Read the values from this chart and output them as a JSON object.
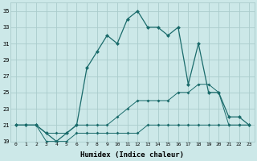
{
  "xlabel": "Humidex (Indice chaleur)",
  "x": [
    0,
    1,
    2,
    3,
    4,
    5,
    6,
    7,
    8,
    9,
    10,
    11,
    12,
    13,
    14,
    15,
    16,
    17,
    18,
    19,
    20,
    21,
    22,
    23
  ],
  "line1": [
    21,
    21,
    21,
    20,
    19,
    20,
    21,
    28,
    30,
    32,
    31,
    34,
    35,
    33,
    33,
    32,
    33,
    26,
    31,
    25,
    25,
    22,
    22,
    21
  ],
  "line2": [
    21,
    21,
    21,
    20,
    20,
    20,
    21,
    21,
    21,
    21,
    22,
    23,
    24,
    24,
    24,
    24,
    25,
    25,
    26,
    26,
    25,
    21,
    21,
    21
  ],
  "line3": [
    21,
    21,
    21,
    19,
    19,
    19,
    20,
    20,
    20,
    20,
    20,
    20,
    20,
    21,
    21,
    21,
    21,
    21,
    21,
    21,
    21,
    21,
    21,
    21
  ],
  "bg_color": "#cce8e8",
  "grid_color": "#aacccc",
  "line_color": "#1a6b6b",
  "ylim": [
    19,
    36
  ],
  "yticks": [
    19,
    21,
    23,
    25,
    27,
    29,
    31,
    33,
    35
  ],
  "xticks": [
    0,
    1,
    2,
    3,
    4,
    5,
    6,
    7,
    8,
    9,
    10,
    11,
    12,
    13,
    14,
    15,
    16,
    17,
    18,
    19,
    20,
    21,
    22,
    23
  ]
}
